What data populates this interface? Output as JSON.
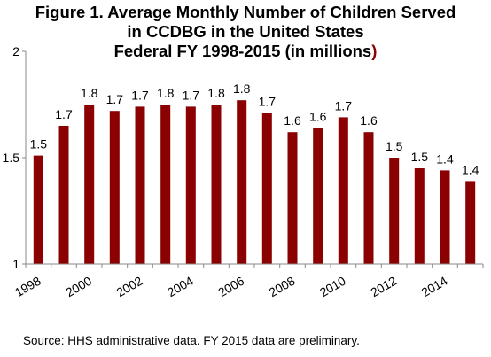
{
  "chart_data": {
    "type": "bar",
    "title_lines": [
      "Figure 1. Average Monthly Number of Children Served",
      "in CCDBG in the United States",
      "Federal FY 1998-2015 (in millions"
    ],
    "title_close": ")",
    "categories": [
      "1998",
      "1999",
      "2000",
      "2001",
      "2002",
      "2003",
      "2004",
      "2005",
      "2006",
      "2007",
      "2008",
      "2009",
      "2010",
      "2011",
      "2012",
      "2013",
      "2014",
      "2015"
    ],
    "values": [
      1.51,
      1.65,
      1.75,
      1.72,
      1.74,
      1.75,
      1.74,
      1.75,
      1.77,
      1.71,
      1.62,
      1.64,
      1.69,
      1.62,
      1.5,
      1.45,
      1.44,
      1.39
    ],
    "data_labels": [
      "1.5",
      "1.7",
      "1.8",
      "1.7",
      "1.7",
      "1.8",
      "1.7",
      "1.8",
      "1.8",
      "1.7",
      "1.6",
      "1.6",
      "1.7",
      "1.6",
      "1.5",
      "1.5",
      "1.4",
      "1.4"
    ],
    "x_tick_labels": [
      "1998",
      "2000",
      "2002",
      "2004",
      "2006",
      "2008",
      "2010",
      "2012",
      "2014"
    ],
    "y_ticks": [
      1,
      1.5,
      2
    ],
    "y_tick_labels": [
      "1",
      "1.5",
      "2"
    ],
    "ylim": [
      1,
      2
    ],
    "grid": false,
    "legend": "none",
    "bar_color": "#8b0000",
    "source": "Source: HHS administrative data. FY 2015 data are preliminary."
  }
}
